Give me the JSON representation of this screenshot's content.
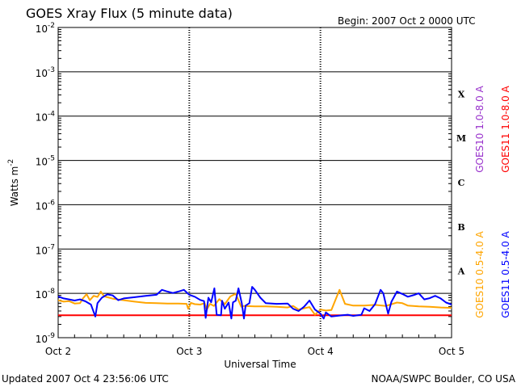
{
  "header": {
    "title": "GOES Xray Flux (5 minute data)",
    "begin": "Begin:  2007 Oct 2 0000 UTC"
  },
  "footer": {
    "updated": "Updated 2007 Oct  4 23:56:06 UTC",
    "credit": "NOAA/SWPC Boulder, CO USA"
  },
  "chart_data": {
    "type": "line",
    "title": "GOES Xray Flux (5 minute data)",
    "xlabel": "Universal Time",
    "ylabel": "Watts m",
    "ylabel_superscript": "-2",
    "yscale": "log",
    "ylim": [
      1e-09,
      0.01
    ],
    "y_ticks": [
      {
        "base": "10",
        "exp": "-2",
        "value": 0.01
      },
      {
        "base": "10",
        "exp": "-3",
        "value": 0.001
      },
      {
        "base": "10",
        "exp": "-4",
        "value": 0.0001
      },
      {
        "base": "10",
        "exp": "-5",
        "value": 1e-05
      },
      {
        "base": "10",
        "exp": "-6",
        "value": 1e-06
      },
      {
        "base": "10",
        "exp": "-7",
        "value": 1e-07
      },
      {
        "base": "10",
        "exp": "-8",
        "value": 1e-08
      },
      {
        "base": "10",
        "exp": "-9",
        "value": 1e-09
      }
    ],
    "xlim_hours": [
      0,
      72
    ],
    "x_ticks": [
      {
        "label": "Oct 2",
        "hour": 0
      },
      {
        "label": "Oct 3",
        "hour": 24
      },
      {
        "label": "Oct 4",
        "hour": 48
      },
      {
        "label": "Oct 5",
        "hour": 72
      }
    ],
    "flare_classes": [
      {
        "label": "X",
        "low": 0.0001
      },
      {
        "label": "M",
        "low": 1e-05
      },
      {
        "label": "C",
        "low": 1e-06
      },
      {
        "label": "B",
        "low": 1e-07
      },
      {
        "label": "A",
        "low": 1e-08
      }
    ],
    "grid": "horizontal at decades; dashed vertical at day boundaries",
    "legend_position": "right, vertical",
    "legend": [
      {
        "name": "GOES10 1.0-8.0 A",
        "color": "#9932cc"
      },
      {
        "name": "GOES11 1.0-8.0 A",
        "color": "#ff0000"
      },
      {
        "name": "GOES10 0.5-4.0 A",
        "color": "#ffa500"
      },
      {
        "name": "GOES11 0.5-4.0 A",
        "color": "#0000ff"
      }
    ],
    "series": [
      {
        "name": "GOES11 1.0-8.0 A",
        "color": "#ff0000",
        "points": [
          [
            0,
            3.2e-09
          ],
          [
            72,
            3.2e-09
          ]
        ]
      },
      {
        "name": "GOES10 0.5-4.0 A",
        "color": "#ffa500",
        "points": [
          [
            0,
            7e-09
          ],
          [
            1,
            6.5e-09
          ],
          [
            2,
            6.7e-09
          ],
          [
            3,
            5.9e-09
          ],
          [
            4,
            6e-09
          ],
          [
            4.5,
            7.6e-09
          ],
          [
            5.2,
            9.6e-09
          ],
          [
            5.8,
            7e-09
          ],
          [
            6.5,
            8.8e-09
          ],
          [
            7.2,
            8.3e-09
          ],
          [
            7.8,
            1.1e-08
          ],
          [
            8.4,
            8.6e-09
          ],
          [
            9,
            8.2e-09
          ],
          [
            10,
            7.6e-09
          ],
          [
            12,
            7e-09
          ],
          [
            14,
            6.5e-09
          ],
          [
            16,
            6.1e-09
          ],
          [
            18,
            6e-09
          ],
          [
            20,
            5.9e-09
          ],
          [
            22,
            5.9e-09
          ],
          [
            23.5,
            5.8e-09
          ],
          [
            23.8,
            4.5e-09
          ],
          [
            24.3,
            6.1e-09
          ],
          [
            25,
            5.7e-09
          ],
          [
            26,
            5.6e-09
          ],
          [
            26.8,
            6e-09
          ],
          [
            27.2,
            4.3e-09
          ],
          [
            27.8,
            5.8e-09
          ],
          [
            28.5,
            5.2e-09
          ],
          [
            29.5,
            7.4e-09
          ],
          [
            30.5,
            5.7e-09
          ],
          [
            31.5,
            8.5e-09
          ],
          [
            32.5,
            9.8e-09
          ],
          [
            33.5,
            5e-09
          ],
          [
            34,
            5.2e-09
          ],
          [
            36,
            5.1e-09
          ],
          [
            38,
            5.1e-09
          ],
          [
            40,
            5e-09
          ],
          [
            42,
            4.8e-09
          ],
          [
            43,
            5.2e-09
          ],
          [
            44,
            4.3e-09
          ],
          [
            45,
            4.6e-09
          ],
          [
            46,
            4.9e-09
          ],
          [
            47,
            3.3e-09
          ],
          [
            48,
            4.3e-09
          ],
          [
            49,
            4.1e-09
          ],
          [
            50,
            4.2e-09
          ],
          [
            51.5,
            1.2e-08
          ],
          [
            52.5,
            5.8e-09
          ],
          [
            54,
            5.3e-09
          ],
          [
            56,
            5.3e-09
          ],
          [
            58,
            5.5e-09
          ],
          [
            60,
            5.2e-09
          ],
          [
            62,
            6.2e-09
          ],
          [
            63,
            6e-09
          ],
          [
            64,
            5.3e-09
          ],
          [
            66,
            5.1e-09
          ],
          [
            68,
            5e-09
          ],
          [
            70,
            4.8e-09
          ],
          [
            72,
            4.7e-09
          ]
        ]
      },
      {
        "name": "GOES11 0.5-4.0 A",
        "color": "#0000ff",
        "points": [
          [
            0,
            8.5e-09
          ],
          [
            1,
            7.7e-09
          ],
          [
            2,
            7.3e-09
          ],
          [
            3,
            6.9e-09
          ],
          [
            4,
            7.3e-09
          ],
          [
            5,
            6.6e-09
          ],
          [
            6,
            5.6e-09
          ],
          [
            6.8,
            3e-09
          ],
          [
            7.2,
            6e-09
          ],
          [
            8,
            8e-09
          ],
          [
            9,
            9.5e-09
          ],
          [
            10,
            9e-09
          ],
          [
            11,
            7e-09
          ],
          [
            12,
            7.7e-09
          ],
          [
            14,
            8.2e-09
          ],
          [
            16,
            8.8e-09
          ],
          [
            18,
            9.3e-09
          ],
          [
            19,
            1.2e-08
          ],
          [
            20,
            1.1e-08
          ],
          [
            21,
            1.02e-08
          ],
          [
            22,
            1.1e-08
          ],
          [
            23,
            1.2e-08
          ],
          [
            24,
            9.3e-09
          ],
          [
            25,
            8.4e-09
          ],
          [
            26,
            7.1e-09
          ],
          [
            26.7,
            6.7e-09
          ],
          [
            27,
            2.8e-09
          ],
          [
            27.5,
            8e-09
          ],
          [
            28,
            6.3e-09
          ],
          [
            28.6,
            1.3e-08
          ],
          [
            29,
            3.3e-09
          ],
          [
            29.8,
            3.2e-09
          ],
          [
            30,
            6.8e-09
          ],
          [
            30.5,
            4.5e-09
          ],
          [
            31.2,
            6.2e-09
          ],
          [
            31.7,
            2.7e-09
          ],
          [
            32,
            6.3e-09
          ],
          [
            32.5,
            6.8e-09
          ],
          [
            33,
            1.3e-08
          ],
          [
            33.6,
            6e-09
          ],
          [
            34,
            2.7e-09
          ],
          [
            34.3,
            5.3e-09
          ],
          [
            35,
            6e-09
          ],
          [
            35.5,
            1.4e-08
          ],
          [
            36,
            1.2e-08
          ],
          [
            37,
            8e-09
          ],
          [
            38,
            6e-09
          ],
          [
            40,
            5.8e-09
          ],
          [
            42,
            5.9e-09
          ],
          [
            43,
            4.5e-09
          ],
          [
            44,
            4e-09
          ],
          [
            45,
            5e-09
          ],
          [
            46,
            6.9e-09
          ],
          [
            47,
            4.3e-09
          ],
          [
            48,
            3.5e-09
          ],
          [
            48.6,
            2.7e-09
          ],
          [
            49,
            3.7e-09
          ],
          [
            50,
            3e-09
          ],
          [
            51,
            3.1e-09
          ],
          [
            52,
            3.2e-09
          ],
          [
            53,
            3.3e-09
          ],
          [
            54,
            3.1e-09
          ],
          [
            55.5,
            3.3e-09
          ],
          [
            56,
            4.6e-09
          ],
          [
            57,
            4e-09
          ],
          [
            58,
            5.7e-09
          ],
          [
            59,
            1.2e-08
          ],
          [
            59.5,
            1e-08
          ],
          [
            60,
            5.5e-09
          ],
          [
            60.4,
            3.5e-09
          ],
          [
            61,
            6.5e-09
          ],
          [
            62,
            1.1e-08
          ],
          [
            63,
            9.7e-09
          ],
          [
            64,
            8.4e-09
          ],
          [
            65,
            9.1e-09
          ],
          [
            66,
            1e-08
          ],
          [
            67,
            7.3e-09
          ],
          [
            68,
            7.8e-09
          ],
          [
            69,
            8.8e-09
          ],
          [
            70,
            7.7e-09
          ],
          [
            71,
            6.2e-09
          ],
          [
            72,
            5.6e-09
          ]
        ]
      }
    ]
  }
}
